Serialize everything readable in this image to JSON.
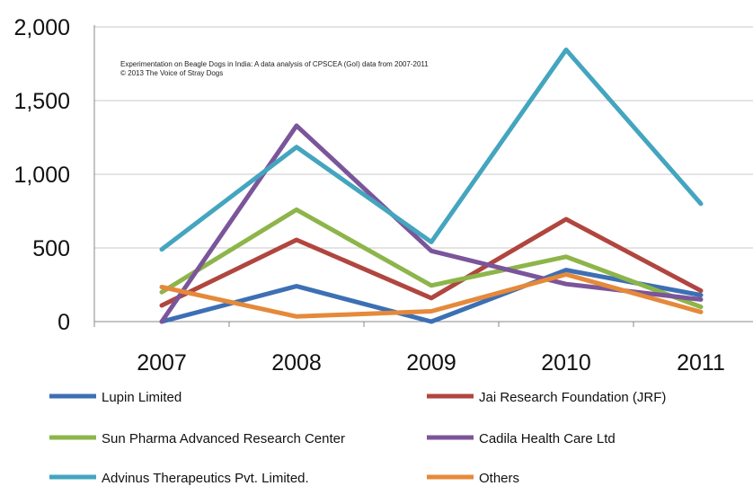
{
  "chart_data": {
    "type": "line",
    "title": "",
    "xlabel": "",
    "ylabel": "",
    "x": [
      "2007",
      "2008",
      "2009",
      "2010",
      "2011"
    ],
    "ylim": [
      0,
      2000
    ],
    "yticks": [
      0,
      500,
      1000,
      1500,
      2000
    ],
    "ytick_labels": [
      "0",
      "500",
      "1,000",
      "1,500",
      "2,000"
    ],
    "grid": "horizontal",
    "legend_position": "bottom",
    "annotation_lines": [
      "Experimentation on Beagle Dogs in India: A data analysis of CPSCEA (GoI) data from 2007-2011",
      "© 2013 The Voice of Stray Dogs"
    ],
    "series": [
      {
        "name": "Lupin Limited",
        "color": "#3d6fb4",
        "values": [
          0,
          240,
          0,
          350,
          180
        ]
      },
      {
        "name": "Jai Research Foundation (JRF)",
        "color": "#b0463f",
        "values": [
          110,
          555,
          160,
          695,
          210
        ]
      },
      {
        "name": "Sun Pharma Advanced Research Center",
        "color": "#8db54a",
        "values": [
          200,
          760,
          245,
          440,
          100
        ]
      },
      {
        "name": "Cadila Health Care Ltd",
        "color": "#7b559a",
        "values": [
          0,
          1330,
          480,
          255,
          150
        ]
      },
      {
        "name": "Advinus Therapeutics Pvt. Limited.",
        "color": "#44a5bf",
        "values": [
          490,
          1185,
          540,
          1845,
          800
        ]
      },
      {
        "name": "Others",
        "color": "#e5893a",
        "values": [
          235,
          35,
          70,
          320,
          65
        ]
      }
    ]
  }
}
